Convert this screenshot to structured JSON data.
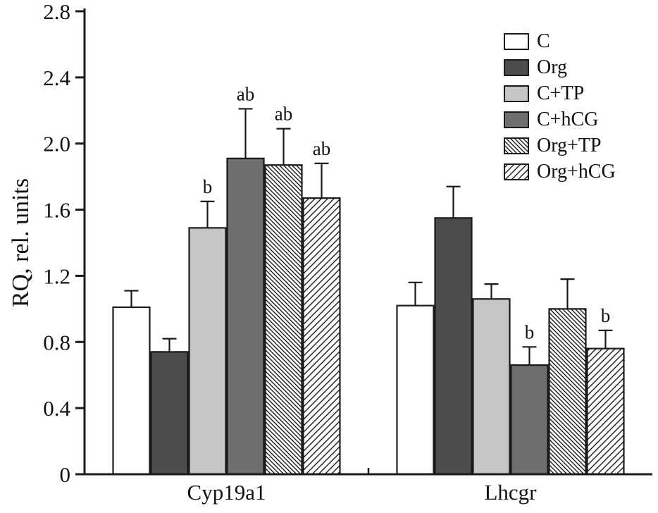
{
  "chart_data": {
    "type": "bar",
    "title": "",
    "xlabel": "",
    "ylabel": "RQ, rel. units",
    "ylim": [
      0,
      2.8
    ],
    "ytick_step": 0.4,
    "yticks": [
      "0",
      "0.4",
      "0.8",
      "1.2",
      "1.6",
      "2.0",
      "2.4",
      "2.8"
    ],
    "categories": [
      "Cyp19a1",
      "Lhcgr"
    ],
    "grid": false,
    "legend_position": "top-right",
    "bar_outline_color": "#1a1a1a",
    "series": [
      {
        "name": "C",
        "style": "solid",
        "fill": "#ffffff",
        "values": [
          1.01,
          1.02
        ],
        "errors": [
          0.1,
          0.14
        ],
        "annotations": [
          "",
          ""
        ]
      },
      {
        "name": "Org",
        "style": "solid",
        "fill": "#4d4d4d",
        "values": [
          0.74,
          1.55
        ],
        "errors": [
          0.08,
          0.19
        ],
        "annotations": [
          "",
          ""
        ]
      },
      {
        "name": "C+TP",
        "style": "solid",
        "fill": "#c6c6c6",
        "values": [
          1.49,
          1.06
        ],
        "errors": [
          0.16,
          0.09
        ],
        "annotations": [
          "b",
          ""
        ]
      },
      {
        "name": "C+hCG",
        "style": "solid",
        "fill": "#6f6f6f",
        "values": [
          1.91,
          0.66
        ],
        "errors": [
          0.3,
          0.11
        ],
        "annotations": [
          "ab",
          "b"
        ]
      },
      {
        "name": "Org+TP",
        "style": "hatch-backslash",
        "fill": "#ffffff",
        "values": [
          1.87,
          1.0
        ],
        "errors": [
          0.22,
          0.18
        ],
        "annotations": [
          "ab",
          ""
        ]
      },
      {
        "name": "Org+hCG",
        "style": "hatch-slash",
        "fill": "#ffffff",
        "values": [
          1.67,
          0.76
        ],
        "errors": [
          0.21,
          0.11
        ],
        "annotations": [
          "ab",
          "b"
        ]
      }
    ]
  }
}
